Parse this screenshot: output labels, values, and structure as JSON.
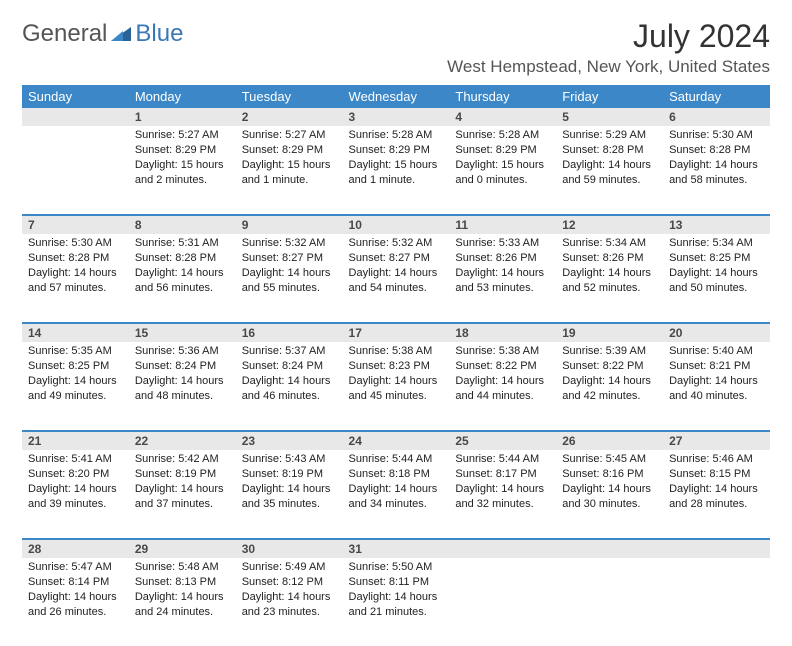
{
  "brand": {
    "part_a": "General",
    "part_b": "Blue"
  },
  "title": "July 2024",
  "location": "West Hempstead, New York, United States",
  "colors": {
    "accent": "#3b87c8",
    "daynum_bg": "#e8e8e8",
    "text": "#222222",
    "header_text": "#ffffff"
  },
  "weekdays": [
    "Sunday",
    "Monday",
    "Tuesday",
    "Wednesday",
    "Thursday",
    "Friday",
    "Saturday"
  ],
  "weeks": [
    {
      "nums": [
        "",
        "1",
        "2",
        "3",
        "4",
        "5",
        "6"
      ],
      "cells": [
        {
          "sunrise": "",
          "sunset": "",
          "daylight": ""
        },
        {
          "sunrise": "Sunrise: 5:27 AM",
          "sunset": "Sunset: 8:29 PM",
          "daylight": "Daylight: 15 hours and 2 minutes."
        },
        {
          "sunrise": "Sunrise: 5:27 AM",
          "sunset": "Sunset: 8:29 PM",
          "daylight": "Daylight: 15 hours and 1 minute."
        },
        {
          "sunrise": "Sunrise: 5:28 AM",
          "sunset": "Sunset: 8:29 PM",
          "daylight": "Daylight: 15 hours and 1 minute."
        },
        {
          "sunrise": "Sunrise: 5:28 AM",
          "sunset": "Sunset: 8:29 PM",
          "daylight": "Daylight: 15 hours and 0 minutes."
        },
        {
          "sunrise": "Sunrise: 5:29 AM",
          "sunset": "Sunset: 8:28 PM",
          "daylight": "Daylight: 14 hours and 59 minutes."
        },
        {
          "sunrise": "Sunrise: 5:30 AM",
          "sunset": "Sunset: 8:28 PM",
          "daylight": "Daylight: 14 hours and 58 minutes."
        }
      ]
    },
    {
      "nums": [
        "7",
        "8",
        "9",
        "10",
        "11",
        "12",
        "13"
      ],
      "cells": [
        {
          "sunrise": "Sunrise: 5:30 AM",
          "sunset": "Sunset: 8:28 PM",
          "daylight": "Daylight: 14 hours and 57 minutes."
        },
        {
          "sunrise": "Sunrise: 5:31 AM",
          "sunset": "Sunset: 8:28 PM",
          "daylight": "Daylight: 14 hours and 56 minutes."
        },
        {
          "sunrise": "Sunrise: 5:32 AM",
          "sunset": "Sunset: 8:27 PM",
          "daylight": "Daylight: 14 hours and 55 minutes."
        },
        {
          "sunrise": "Sunrise: 5:32 AM",
          "sunset": "Sunset: 8:27 PM",
          "daylight": "Daylight: 14 hours and 54 minutes."
        },
        {
          "sunrise": "Sunrise: 5:33 AM",
          "sunset": "Sunset: 8:26 PM",
          "daylight": "Daylight: 14 hours and 53 minutes."
        },
        {
          "sunrise": "Sunrise: 5:34 AM",
          "sunset": "Sunset: 8:26 PM",
          "daylight": "Daylight: 14 hours and 52 minutes."
        },
        {
          "sunrise": "Sunrise: 5:34 AM",
          "sunset": "Sunset: 8:25 PM",
          "daylight": "Daylight: 14 hours and 50 minutes."
        }
      ]
    },
    {
      "nums": [
        "14",
        "15",
        "16",
        "17",
        "18",
        "19",
        "20"
      ],
      "cells": [
        {
          "sunrise": "Sunrise: 5:35 AM",
          "sunset": "Sunset: 8:25 PM",
          "daylight": "Daylight: 14 hours and 49 minutes."
        },
        {
          "sunrise": "Sunrise: 5:36 AM",
          "sunset": "Sunset: 8:24 PM",
          "daylight": "Daylight: 14 hours and 48 minutes."
        },
        {
          "sunrise": "Sunrise: 5:37 AM",
          "sunset": "Sunset: 8:24 PM",
          "daylight": "Daylight: 14 hours and 46 minutes."
        },
        {
          "sunrise": "Sunrise: 5:38 AM",
          "sunset": "Sunset: 8:23 PM",
          "daylight": "Daylight: 14 hours and 45 minutes."
        },
        {
          "sunrise": "Sunrise: 5:38 AM",
          "sunset": "Sunset: 8:22 PM",
          "daylight": "Daylight: 14 hours and 44 minutes."
        },
        {
          "sunrise": "Sunrise: 5:39 AM",
          "sunset": "Sunset: 8:22 PM",
          "daylight": "Daylight: 14 hours and 42 minutes."
        },
        {
          "sunrise": "Sunrise: 5:40 AM",
          "sunset": "Sunset: 8:21 PM",
          "daylight": "Daylight: 14 hours and 40 minutes."
        }
      ]
    },
    {
      "nums": [
        "21",
        "22",
        "23",
        "24",
        "25",
        "26",
        "27"
      ],
      "cells": [
        {
          "sunrise": "Sunrise: 5:41 AM",
          "sunset": "Sunset: 8:20 PM",
          "daylight": "Daylight: 14 hours and 39 minutes."
        },
        {
          "sunrise": "Sunrise: 5:42 AM",
          "sunset": "Sunset: 8:19 PM",
          "daylight": "Daylight: 14 hours and 37 minutes."
        },
        {
          "sunrise": "Sunrise: 5:43 AM",
          "sunset": "Sunset: 8:19 PM",
          "daylight": "Daylight: 14 hours and 35 minutes."
        },
        {
          "sunrise": "Sunrise: 5:44 AM",
          "sunset": "Sunset: 8:18 PM",
          "daylight": "Daylight: 14 hours and 34 minutes."
        },
        {
          "sunrise": "Sunrise: 5:44 AM",
          "sunset": "Sunset: 8:17 PM",
          "daylight": "Daylight: 14 hours and 32 minutes."
        },
        {
          "sunrise": "Sunrise: 5:45 AM",
          "sunset": "Sunset: 8:16 PM",
          "daylight": "Daylight: 14 hours and 30 minutes."
        },
        {
          "sunrise": "Sunrise: 5:46 AM",
          "sunset": "Sunset: 8:15 PM",
          "daylight": "Daylight: 14 hours and 28 minutes."
        }
      ]
    },
    {
      "nums": [
        "28",
        "29",
        "30",
        "31",
        "",
        "",
        ""
      ],
      "cells": [
        {
          "sunrise": "Sunrise: 5:47 AM",
          "sunset": "Sunset: 8:14 PM",
          "daylight": "Daylight: 14 hours and 26 minutes."
        },
        {
          "sunrise": "Sunrise: 5:48 AM",
          "sunset": "Sunset: 8:13 PM",
          "daylight": "Daylight: 14 hours and 24 minutes."
        },
        {
          "sunrise": "Sunrise: 5:49 AM",
          "sunset": "Sunset: 8:12 PM",
          "daylight": "Daylight: 14 hours and 23 minutes."
        },
        {
          "sunrise": "Sunrise: 5:50 AM",
          "sunset": "Sunset: 8:11 PM",
          "daylight": "Daylight: 14 hours and 21 minutes."
        },
        {
          "sunrise": "",
          "sunset": "",
          "daylight": ""
        },
        {
          "sunrise": "",
          "sunset": "",
          "daylight": ""
        },
        {
          "sunrise": "",
          "sunset": "",
          "daylight": ""
        }
      ]
    }
  ]
}
